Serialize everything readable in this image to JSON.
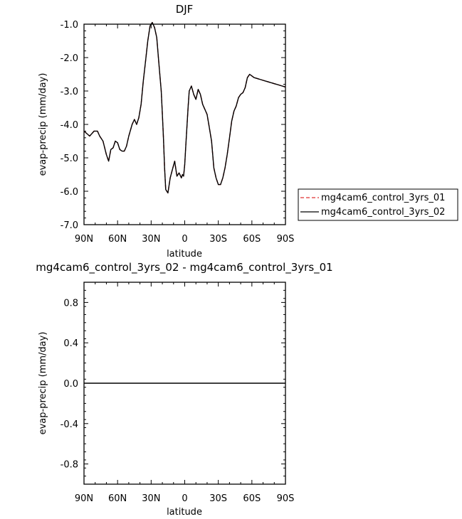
{
  "chart_data": [
    {
      "type": "line",
      "title": "DJF",
      "xlabel": "latitude",
      "ylabel": "evap-precip (mm/day)",
      "xlim": [
        90,
        -90
      ],
      "ylim": [
        -7.0,
        -1.0
      ],
      "xticks": [
        90,
        60,
        30,
        0,
        -30,
        -60,
        -90
      ],
      "xtick_labels": [
        "90N",
        "60N",
        "30N",
        "0",
        "30S",
        "60S",
        "90S"
      ],
      "yticks": [
        -1.0,
        -2.0,
        -3.0,
        -4.0,
        -5.0,
        -6.0,
        -7.0
      ],
      "ytick_labels": [
        "-1.0",
        "-2.0",
        "-3.0",
        "-4.0",
        "-5.0",
        "-6.0",
        "-7.0"
      ],
      "legend_position": "right",
      "x": [
        90,
        85,
        81,
        78,
        76,
        73,
        70,
        68,
        66,
        64,
        62,
        60,
        58,
        56,
        54,
        52,
        50,
        47,
        45,
        43,
        41,
        39,
        37,
        35,
        33,
        31,
        29,
        27,
        25,
        23,
        21,
        20,
        19,
        18,
        17,
        15,
        13,
        11,
        9,
        7,
        5,
        3,
        2,
        1,
        0,
        -1,
        -3,
        -4,
        -6,
        -8,
        -10,
        -12,
        -14,
        -16,
        -18,
        -20,
        -22,
        -24,
        -25,
        -26,
        -28,
        -30,
        -32,
        -34,
        -36,
        -38,
        -40,
        -42,
        -44,
        -46,
        -48,
        -50,
        -52,
        -54,
        -56,
        -58,
        -60,
        -62,
        -64,
        -66,
        -68,
        -70,
        -72,
        -74,
        -76,
        -78,
        -80,
        -82,
        -84,
        -86,
        -88,
        -90
      ],
      "series": [
        {
          "name": "mg4cam6_control_3yrs_01",
          "color": "#e03030",
          "dash": "dashed",
          "values": [
            -4.2,
            -4.35,
            -4.2,
            -4.2,
            -4.35,
            -4.5,
            -4.9,
            -5.1,
            -4.75,
            -4.7,
            -4.5,
            -4.55,
            -4.75,
            -4.8,
            -4.8,
            -4.65,
            -4.35,
            -4.0,
            -3.85,
            -4.0,
            -3.8,
            -3.4,
            -2.7,
            -2.1,
            -1.5,
            -1.05,
            -0.95,
            -1.1,
            -1.4,
            -2.2,
            -3.0,
            -3.7,
            -4.4,
            -5.3,
            -5.95,
            -6.05,
            -5.6,
            -5.35,
            -5.1,
            -5.55,
            -5.45,
            -5.6,
            -5.5,
            -5.55,
            -5.2,
            -4.6,
            -3.5,
            -3.0,
            -2.85,
            -3.1,
            -3.25,
            -2.95,
            -3.1,
            -3.4,
            -3.55,
            -3.7,
            -4.1,
            -4.5,
            -4.9,
            -5.3,
            -5.6,
            -5.8,
            -5.8,
            -5.6,
            -5.3,
            -4.9,
            -4.4,
            -3.9,
            -3.6,
            -3.45,
            -3.2,
            -3.1,
            -3.05,
            -2.9,
            -2.6,
            -2.5,
            -2.55,
            -2.6,
            -2.62,
            -2.64,
            -2.66,
            -2.68,
            -2.7,
            -2.72,
            -2.74,
            -2.76,
            -2.78,
            -2.8,
            -2.82,
            -2.84,
            -2.86,
            -2.88
          ]
        },
        {
          "name": "mg4cam6_control_3yrs_02",
          "color": "#000000",
          "dash": "solid",
          "values": [
            -4.2,
            -4.35,
            -4.2,
            -4.2,
            -4.35,
            -4.5,
            -4.9,
            -5.1,
            -4.75,
            -4.7,
            -4.5,
            -4.55,
            -4.75,
            -4.8,
            -4.8,
            -4.65,
            -4.35,
            -4.0,
            -3.85,
            -4.0,
            -3.8,
            -3.4,
            -2.7,
            -2.1,
            -1.5,
            -1.05,
            -0.95,
            -1.1,
            -1.4,
            -2.2,
            -3.0,
            -3.7,
            -4.4,
            -5.3,
            -5.95,
            -6.05,
            -5.6,
            -5.35,
            -5.1,
            -5.55,
            -5.45,
            -5.6,
            -5.5,
            -5.55,
            -5.2,
            -4.6,
            -3.5,
            -3.0,
            -2.85,
            -3.1,
            -3.25,
            -2.95,
            -3.1,
            -3.4,
            -3.55,
            -3.7,
            -4.1,
            -4.5,
            -4.9,
            -5.3,
            -5.6,
            -5.8,
            -5.8,
            -5.6,
            -5.3,
            -4.9,
            -4.4,
            -3.9,
            -3.6,
            -3.45,
            -3.2,
            -3.1,
            -3.05,
            -2.9,
            -2.6,
            -2.5,
            -2.55,
            -2.6,
            -2.62,
            -2.64,
            -2.66,
            -2.68,
            -2.7,
            -2.72,
            -2.74,
            -2.76,
            -2.78,
            -2.8,
            -2.82,
            -2.84,
            -2.86,
            -2.88
          ]
        }
      ]
    },
    {
      "type": "line",
      "title": "mg4cam6_control_3yrs_02 - mg4cam6_control_3yrs_01",
      "xlabel": "latitude",
      "ylabel": "evap-precip (mm/day)",
      "xlim": [
        90,
        -90
      ],
      "ylim": [
        -1.0,
        1.0
      ],
      "xticks": [
        90,
        60,
        30,
        0,
        -30,
        -60,
        -90
      ],
      "xtick_labels": [
        "90N",
        "60N",
        "30N",
        "0",
        "30S",
        "60S",
        "90S"
      ],
      "yticks": [
        0.8,
        0.4,
        0.0,
        -0.4,
        -0.8
      ],
      "ytick_labels": [
        "0.8",
        "0.4",
        "0.0",
        "-0.4",
        "-0.8"
      ],
      "x": [
        90,
        -90
      ],
      "series": [
        {
          "color": "#000000",
          "dash": "solid",
          "values": [
            0.0,
            0.0
          ]
        }
      ]
    }
  ]
}
